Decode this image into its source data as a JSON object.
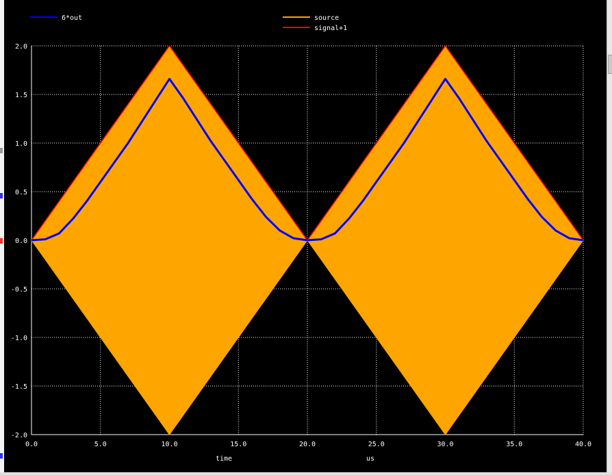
{
  "chart_data": {
    "type": "line",
    "xlabel": "time",
    "xunit": "us",
    "xlim": [
      0,
      40
    ],
    "ylim": [
      -2,
      2
    ],
    "xticks": [
      "0.0",
      "5.0",
      "10.0",
      "15.0",
      "20.0",
      "25.0",
      "30.0",
      "35.0",
      "40.0"
    ],
    "yticks": [
      "2.0",
      "1.5",
      "1.0",
      "0.5",
      "0.0",
      "-0.5",
      "-1.0",
      "-1.5",
      "-2.0"
    ],
    "grid": true,
    "legend_position": "top",
    "series": [
      {
        "name": "6*out",
        "color": "#0000ff",
        "x": [
          0,
          1,
          2,
          3,
          4,
          5,
          6,
          7,
          8,
          9,
          10,
          11,
          12,
          13,
          14,
          15,
          16,
          17,
          18,
          19,
          20,
          21,
          22,
          23,
          24,
          25,
          26,
          27,
          28,
          29,
          30,
          31,
          32,
          33,
          34,
          35,
          36,
          37,
          38,
          39,
          40
        ],
        "y": [
          0.0,
          0.01,
          0.07,
          0.22,
          0.4,
          0.6,
          0.8,
          1.0,
          1.22,
          1.44,
          1.66,
          1.46,
          1.24,
          1.02,
          0.82,
          0.62,
          0.42,
          0.24,
          0.1,
          0.02,
          0.0,
          0.01,
          0.07,
          0.22,
          0.4,
          0.6,
          0.8,
          1.0,
          1.22,
          1.44,
          1.66,
          1.46,
          1.24,
          1.02,
          0.82,
          0.62,
          0.42,
          0.24,
          0.1,
          0.02,
          0.0
        ]
      },
      {
        "name": "source",
        "color": "#ffa500",
        "render": "dense-oscillation-envelope",
        "x": [
          0,
          10,
          20,
          30,
          40
        ],
        "y_upper": [
          0,
          2,
          0,
          2,
          0
        ],
        "y_lower": [
          0,
          -2,
          0,
          -2,
          0
        ]
      },
      {
        "name": "signal+1",
        "color": "#ff0000",
        "x": [
          0,
          10,
          20,
          30,
          40
        ],
        "y": [
          0,
          2,
          0,
          2,
          0
        ]
      }
    ]
  }
}
